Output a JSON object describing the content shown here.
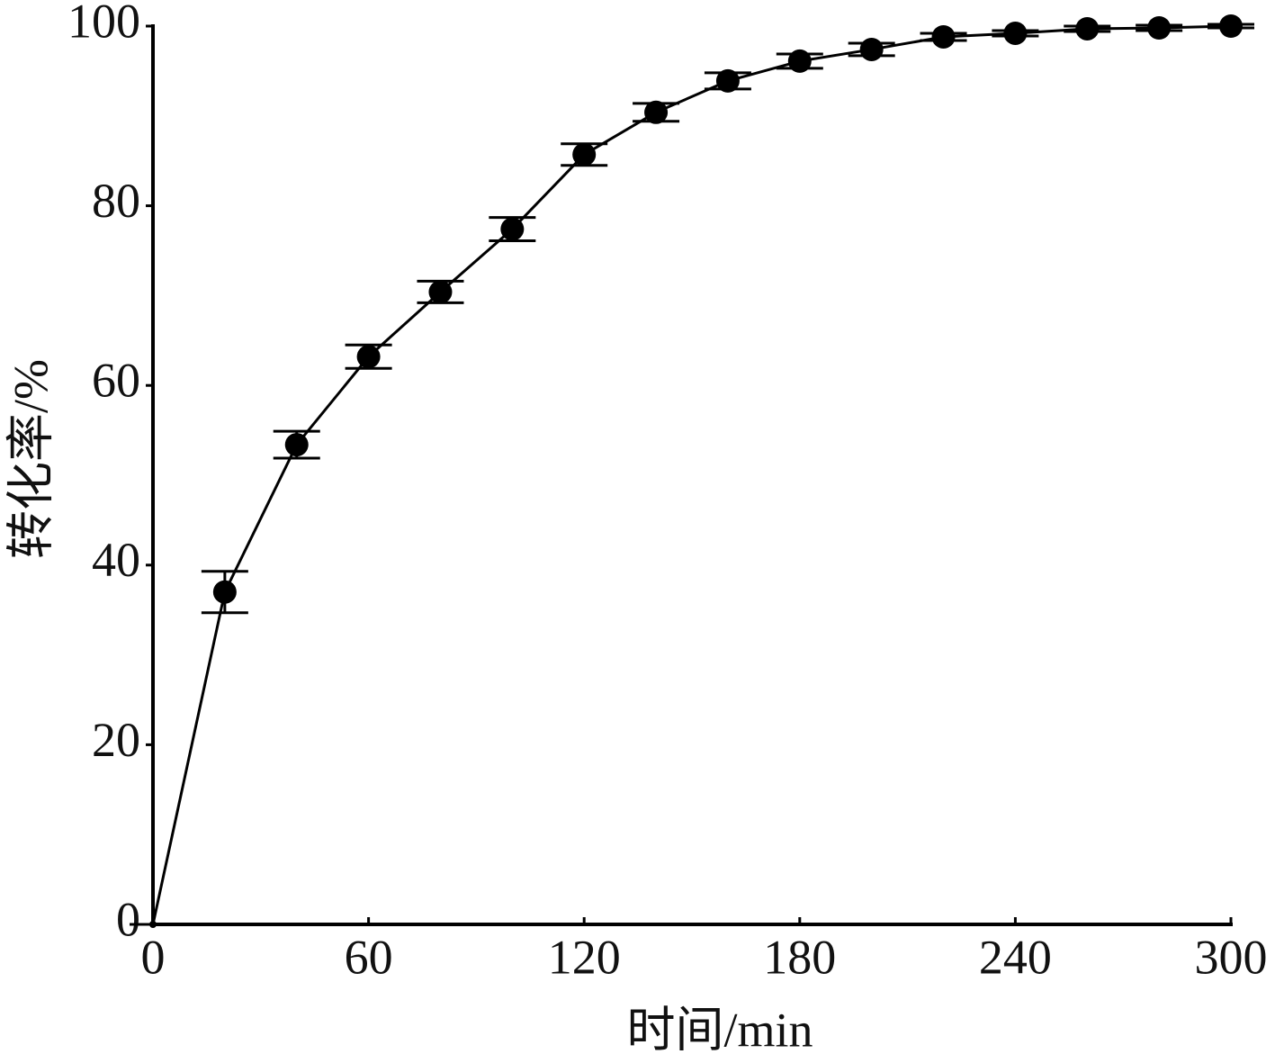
{
  "chart_data": {
    "type": "line",
    "x_label": "时间/min",
    "y_label": "转化率/%",
    "x": [
      0,
      20,
      40,
      60,
      80,
      100,
      120,
      140,
      160,
      180,
      200,
      220,
      240,
      260,
      280,
      300
    ],
    "values": [
      0,
      37.0,
      53.4,
      63.2,
      70.4,
      77.4,
      85.7,
      90.4,
      93.9,
      96.1,
      97.4,
      98.8,
      99.2,
      99.7,
      99.8,
      100
    ],
    "errors": [
      0,
      2.3,
      1.5,
      1.3,
      1.2,
      1.3,
      1.2,
      1.0,
      0.9,
      0.8,
      0.7,
      0.4,
      0.3,
      0.3,
      0.3,
      0.2
    ],
    "color": "#000000",
    "xlim": [
      0,
      300
    ],
    "xticks": [
      0,
      60,
      120,
      180,
      240,
      300
    ],
    "ylim": [
      0,
      100
    ],
    "yticks": [
      0,
      20,
      40,
      60,
      80,
      100
    ],
    "grid": false
  }
}
